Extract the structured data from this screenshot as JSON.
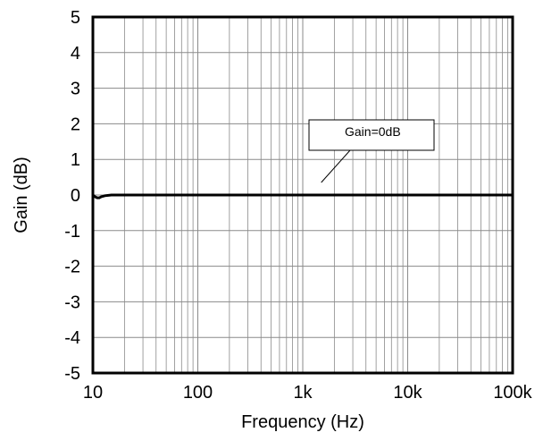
{
  "chart_data": {
    "type": "line",
    "xlabel": "Frequency (Hz)",
    "ylabel": "Gain (dB)",
    "x_scale": "log",
    "xlim": [
      10,
      100000
    ],
    "ylim": [
      -5,
      5
    ],
    "grid": true,
    "x_ticks": [
      {
        "value": 10,
        "label": "10"
      },
      {
        "value": 100,
        "label": "100"
      },
      {
        "value": 1000,
        "label": "1k"
      },
      {
        "value": 10000,
        "label": "10k"
      },
      {
        "value": 100000,
        "label": "100k"
      }
    ],
    "y_ticks": [
      {
        "value": 5,
        "label": "5"
      },
      {
        "value": 4,
        "label": "4"
      },
      {
        "value": 3,
        "label": "3"
      },
      {
        "value": 2,
        "label": "2"
      },
      {
        "value": 1,
        "label": "1"
      },
      {
        "value": 0,
        "label": "0"
      },
      {
        "value": -1,
        "label": "-1"
      },
      {
        "value": -2,
        "label": "-2"
      },
      {
        "value": -3,
        "label": "-3"
      },
      {
        "value": -4,
        "label": "-4"
      },
      {
        "value": -5,
        "label": "-5"
      }
    ],
    "series": [
      {
        "color": "#000000",
        "x": [
          10,
          10.5,
          11,
          11.5,
          12,
          13,
          15,
          20,
          50,
          100,
          1000,
          10000,
          100000
        ],
        "y": [
          0,
          -0.05,
          -0.08,
          -0.08,
          -0.05,
          -0.02,
          0,
          0,
          0,
          0,
          0,
          0,
          0
        ]
      }
    ],
    "annotations": [
      {
        "text": "Gain=0dB",
        "target_x": 1500,
        "target_y": 0.1
      }
    ]
  }
}
